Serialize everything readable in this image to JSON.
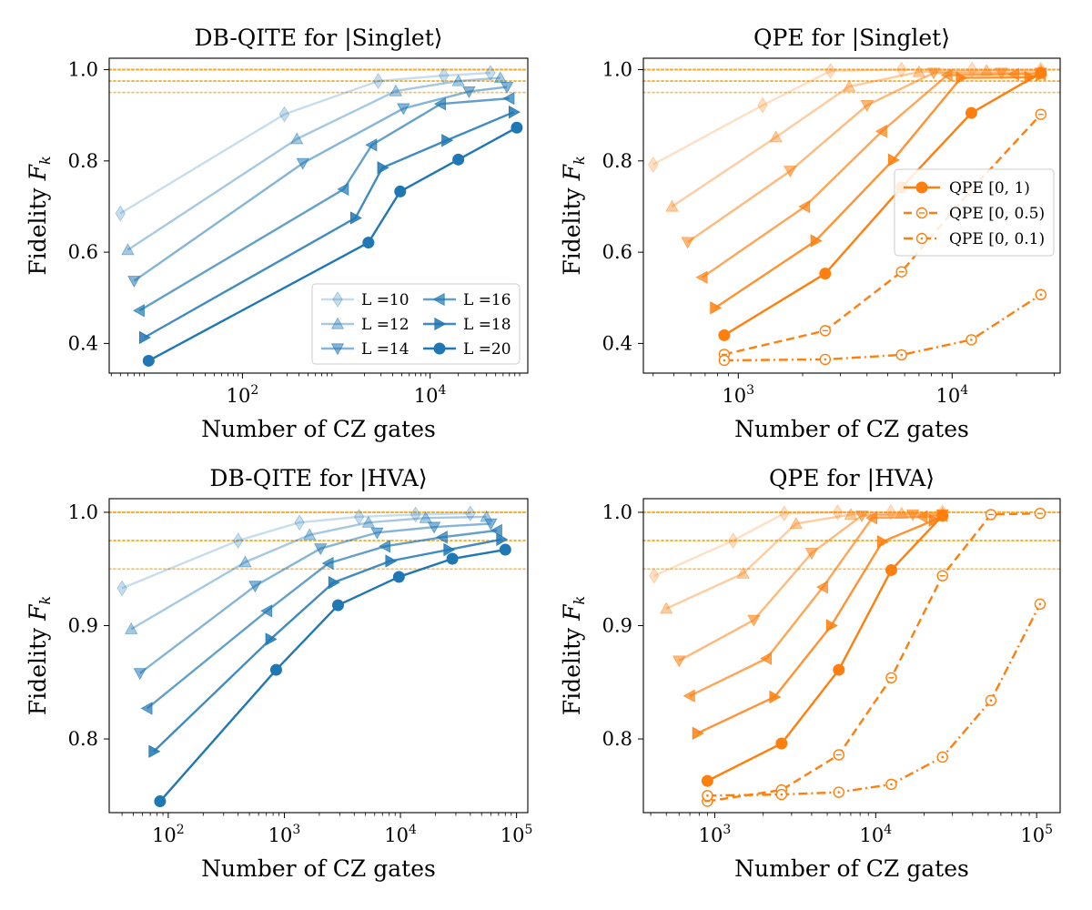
{
  "chart_data": [
    {
      "type": "line",
      "title": "DB-QITE for |Singlet⟩",
      "xlabel": "Number of CZ gates",
      "ylabel": "Fidelity F_k",
      "xscale": "log",
      "xlim": [
        3.8,
        110000
      ],
      "ylim": [
        0.335,
        1.025
      ],
      "yticks": [
        0.4,
        0.6,
        0.8,
        1.0
      ],
      "ytick_labels": [
        "0.4",
        "0.6",
        "0.8",
        "1.0"
      ],
      "xticks": [
        100,
        10000
      ],
      "xtick_labels": [
        "10^2",
        "10^4"
      ],
      "hlines": [
        1.0,
        0.975,
        0.95
      ],
      "hline_color": "#f5a623",
      "legend": {
        "position": "bottom-right",
        "columns": 2
      },
      "series": [
        {
          "name": "L =10",
          "marker": "diamond",
          "color": "#1f77b4",
          "alpha": 0.25,
          "x": [
            5,
            280,
            2800,
            14000,
            44000
          ],
          "y": [
            0.685,
            0.902,
            0.975,
            0.987,
            0.993
          ]
        },
        {
          "name": "L =12",
          "marker": "triangle-up",
          "color": "#1f77b4",
          "alpha": 0.4,
          "x": [
            6,
            380,
            4300,
            20000,
            56000
          ],
          "y": [
            0.605,
            0.848,
            0.953,
            0.975,
            0.982
          ]
        },
        {
          "name": "L =14",
          "marker": "triangle-down",
          "color": "#1f77b4",
          "alpha": 0.55,
          "x": [
            7,
            440,
            5200,
            26000,
            66000
          ],
          "y": [
            0.537,
            0.795,
            0.915,
            0.952,
            0.962
          ]
        },
        {
          "name": "L =16",
          "marker": "triangle-left",
          "color": "#1f77b4",
          "alpha": 0.7,
          "x": [
            8,
            1200,
            2400,
            13000,
            70000
          ],
          "y": [
            0.472,
            0.738,
            0.835,
            0.925,
            0.937
          ]
        },
        {
          "name": "L =18",
          "marker": "triangle-right",
          "color": "#1f77b4",
          "alpha": 0.85,
          "x": [
            9,
            1600,
            3100,
            15000,
            78000
          ],
          "y": [
            0.413,
            0.675,
            0.785,
            0.845,
            0.907
          ]
        },
        {
          "name": "L =20",
          "marker": "circle",
          "color": "#1f77b4",
          "alpha": 1.0,
          "x": [
            10,
            2200,
            4800,
            20000,
            84000
          ],
          "y": [
            0.362,
            0.621,
            0.733,
            0.803,
            0.873
          ]
        }
      ]
    },
    {
      "type": "line",
      "title": "QPE for |Singlet⟩",
      "xlabel": "Number of CZ gates",
      "ylabel": "Fidelity F_k",
      "xscale": "log",
      "xlim": [
        360,
        32000
      ],
      "ylim": [
        0.335,
        1.025
      ],
      "yticks": [
        0.4,
        0.6,
        0.8,
        1.0
      ],
      "ytick_labels": [
        "0.4",
        "0.6",
        "0.8",
        "1.0"
      ],
      "xticks": [
        1000,
        10000
      ],
      "xtick_labels": [
        "10^3",
        "10^4"
      ],
      "hlines": [
        1.0,
        0.975,
        0.95
      ],
      "hline_color": "#f5a623",
      "legend": {
        "position": "center-right",
        "columns": 1
      },
      "legend_entries": [
        {
          "label": "QPE [0, 1)",
          "linestyle": "solid",
          "marker": "circle-filled"
        },
        {
          "label": "QPE [0, 0.5)",
          "linestyle": "dashed",
          "marker": "circle-open-dash"
        },
        {
          "label": "QPE [0, 0.1)",
          "linestyle": "dashdot",
          "marker": "circle-open-dot"
        }
      ],
      "series": [
        {
          "name": "L =10 QPE [0, 1)",
          "marker": "diamond",
          "color": "#ff7f0e",
          "alpha": 0.25,
          "linestyle": "solid",
          "x": [
            400,
            1300,
            2700,
            5800,
            12400,
            26000
          ],
          "y": [
            0.792,
            0.922,
            0.997,
            1.0,
            1.0,
            1.0
          ]
        },
        {
          "name": "L =12 QPE [0, 1)",
          "marker": "triangle-up",
          "color": "#ff7f0e",
          "alpha": 0.4,
          "linestyle": "solid",
          "x": [
            490,
            1500,
            3300,
            7000,
            14500,
            26000
          ],
          "y": [
            0.7,
            0.852,
            0.963,
            0.995,
            0.998,
            0.998
          ]
        },
        {
          "name": "L =14 QPE [0, 1)",
          "marker": "triangle-down",
          "color": "#ff7f0e",
          "alpha": 0.55,
          "linestyle": "solid",
          "x": [
            580,
            1750,
            4000,
            8200,
            17000,
            26000
          ],
          "y": [
            0.622,
            0.778,
            0.922,
            0.993,
            0.993,
            0.993
          ]
        },
        {
          "name": "L =16 QPE [0, 1)",
          "marker": "triangle-left",
          "color": "#ff7f0e",
          "alpha": 0.7,
          "linestyle": "solid",
          "x": [
            680,
            2050,
            4700,
            9500,
            19500,
            26000
          ],
          "y": [
            0.545,
            0.7,
            0.865,
            0.988,
            0.99,
            0.99
          ]
        },
        {
          "name": "L =18 QPE [0, 1)",
          "marker": "triangle-right",
          "color": "#ff7f0e",
          "alpha": 0.85,
          "linestyle": "solid",
          "x": [
            780,
            2300,
            5300,
            11000,
            23000,
            26000
          ],
          "y": [
            0.478,
            0.625,
            0.802,
            0.982,
            0.983,
            0.988
          ]
        },
        {
          "name": "L =20 QPE [0, 1)",
          "marker": "circle",
          "color": "#ff7f0e",
          "alpha": 1.0,
          "linestyle": "solid",
          "x": [
            860,
            2550,
            5800,
            12300,
            26000
          ],
          "y": [
            0.418,
            0.553,
            0.742,
            0.905,
            0.993
          ]
        },
        {
          "name": "L =20 QPE [0, 0.5)",
          "marker": "circle-open-dash",
          "color": "#ff7f0e",
          "alpha": 1.0,
          "linestyle": "dashed",
          "x": [
            860,
            2550,
            5800,
            12300,
            26000
          ],
          "y": [
            0.376,
            0.428,
            0.557,
            0.737,
            0.902
          ]
        },
        {
          "name": "L =20 QPE [0, 0.1)",
          "marker": "circle-open-dot",
          "color": "#ff7f0e",
          "alpha": 1.0,
          "linestyle": "dashdot",
          "x": [
            860,
            2550,
            5800,
            12300,
            26000
          ],
          "y": [
            0.363,
            0.365,
            0.375,
            0.408,
            0.507
          ]
        }
      ]
    },
    {
      "type": "line",
      "title": "DB-QITE for |HVA⟩",
      "xlabel": "Number of CZ gates",
      "ylabel": "Fidelity F_k",
      "xscale": "log",
      "xlim": [
        31,
        125000
      ],
      "ylim": [
        0.735,
        1.012
      ],
      "yticks": [
        0.8,
        0.9,
        1.0
      ],
      "ytick_labels": [
        "0.8",
        "0.9",
        "1.0"
      ],
      "xticks": [
        100,
        1000,
        10000,
        100000
      ],
      "xtick_labels": [
        "10^2",
        "10^3",
        "10^4",
        "10^5"
      ],
      "hlines": [
        1.0,
        0.975,
        0.95
      ],
      "hline_color": "#f5a623",
      "series": [
        {
          "name": "L =10",
          "marker": "diamond",
          "color": "#1f77b4",
          "alpha": 0.25,
          "x": [
            40,
            400,
            1350,
            4400,
            13500,
            40000
          ],
          "y": [
            0.933,
            0.975,
            0.991,
            0.996,
            0.998,
            0.999
          ]
        },
        {
          "name": "L =12",
          "marker": "triangle-up",
          "color": "#1f77b4",
          "alpha": 0.4,
          "x": [
            48,
            460,
            1650,
            5300,
            16500,
            55000
          ],
          "y": [
            0.897,
            0.956,
            0.98,
            0.991,
            0.995,
            0.996
          ]
        },
        {
          "name": "L =14",
          "marker": "triangle-down",
          "color": "#1f77b4",
          "alpha": 0.55,
          "x": [
            57,
            560,
            2050,
            6300,
            19500,
            60000
          ],
          "y": [
            0.858,
            0.935,
            0.968,
            0.982,
            0.987,
            0.99
          ]
        },
        {
          "name": "L =16",
          "marker": "triangle-left",
          "color": "#1f77b4",
          "alpha": 0.7,
          "x": [
            66,
            710,
            2400,
            7400,
            23000,
            68000
          ],
          "y": [
            0.827,
            0.913,
            0.955,
            0.97,
            0.978,
            0.984
          ]
        },
        {
          "name": "L =18",
          "marker": "triangle-right",
          "color": "#1f77b4",
          "alpha": 0.85,
          "x": [
            75,
            760,
            2650,
            8200,
            26000,
            74000
          ],
          "y": [
            0.789,
            0.888,
            0.938,
            0.957,
            0.967,
            0.976
          ]
        },
        {
          "name": "L =20",
          "marker": "circle",
          "color": "#1f77b4",
          "alpha": 1.0,
          "x": [
            85,
            850,
            2900,
            9700,
            28000,
            80000
          ],
          "y": [
            0.745,
            0.861,
            0.918,
            0.943,
            0.959,
            0.967
          ]
        }
      ]
    },
    {
      "type": "line",
      "title": "QPE for |HVA⟩",
      "xlabel": "Number of CZ gates",
      "ylabel": "Fidelity F_k",
      "xscale": "log",
      "xlim": [
        360,
        140000
      ],
      "ylim": [
        0.735,
        1.012
      ],
      "yticks": [
        0.8,
        0.9,
        1.0
      ],
      "ytick_labels": [
        "0.8",
        "0.9",
        "1.0"
      ],
      "xticks": [
        1000,
        10000,
        100000
      ],
      "xtick_labels": [
        "10^3",
        "10^4",
        "10^5"
      ],
      "hlines": [
        1.0,
        0.975,
        0.95
      ],
      "hline_color": "#f5a623",
      "series": [
        {
          "name": "L =10 QPE [0, 1)",
          "marker": "diamond",
          "color": "#ff7f0e",
          "alpha": 0.25,
          "linestyle": "solid",
          "x": [
            420,
            1300,
            2700,
            5800,
            12400,
            26000
          ],
          "y": [
            0.944,
            0.975,
            0.999,
            1.0,
            1.0,
            1.0
          ]
        },
        {
          "name": "L =12 QPE [0, 1)",
          "marker": "triangle-up",
          "color": "#ff7f0e",
          "alpha": 0.4,
          "linestyle": "solid",
          "x": [
            500,
            1500,
            3200,
            7000,
            14500,
            26000
          ],
          "y": [
            0.915,
            0.946,
            0.99,
            0.998,
            0.999,
            0.999
          ]
        },
        {
          "name": "L =14 QPE [0, 1)",
          "marker": "triangle-down",
          "color": "#ff7f0e",
          "alpha": 0.55,
          "linestyle": "solid",
          "x": [
            600,
            1750,
            4000,
            8200,
            17000,
            26000
          ],
          "y": [
            0.869,
            0.905,
            0.964,
            0.997,
            0.998,
            0.998
          ]
        },
        {
          "name": "L =16 QPE [0, 1)",
          "marker": "triangle-left",
          "color": "#ff7f0e",
          "alpha": 0.7,
          "linestyle": "solid",
          "x": [
            700,
            2100,
            4700,
            9500,
            19500,
            26000
          ],
          "y": [
            0.838,
            0.871,
            0.934,
            0.995,
            0.996,
            0.997
          ]
        },
        {
          "name": "L =18 QPE [0, 1)",
          "marker": "triangle-right",
          "color": "#ff7f0e",
          "alpha": 0.85,
          "linestyle": "solid",
          "x": [
            780,
            2350,
            5300,
            11000,
            23000,
            26000
          ],
          "y": [
            0.805,
            0.837,
            0.9,
            0.974,
            0.993,
            0.997
          ]
        },
        {
          "name": "L =20 QPE [0, 1)",
          "marker": "circle",
          "color": "#ff7f0e",
          "alpha": 1.0,
          "linestyle": "solid",
          "x": [
            900,
            2600,
            5900,
            12500,
            26000
          ],
          "y": [
            0.763,
            0.796,
            0.861,
            0.949,
            0.997
          ]
        },
        {
          "name": "L =20 QPE [0, 0.5)",
          "marker": "circle-open-dash",
          "color": "#ff7f0e",
          "alpha": 1.0,
          "linestyle": "dashed",
          "x": [
            900,
            2600,
            5900,
            12500,
            26000,
            52000,
            105000
          ],
          "y": [
            0.745,
            0.755,
            0.786,
            0.854,
            0.944,
            0.998,
            0.999
          ]
        },
        {
          "name": "L =20 QPE [0, 0.1)",
          "marker": "circle-open-dot",
          "color": "#ff7f0e",
          "alpha": 1.0,
          "linestyle": "dashdot",
          "x": [
            900,
            2600,
            5900,
            12500,
            26000,
            52000,
            105000
          ],
          "y": [
            0.75,
            0.751,
            0.753,
            0.76,
            0.784,
            0.834,
            0.919
          ]
        }
      ]
    }
  ]
}
